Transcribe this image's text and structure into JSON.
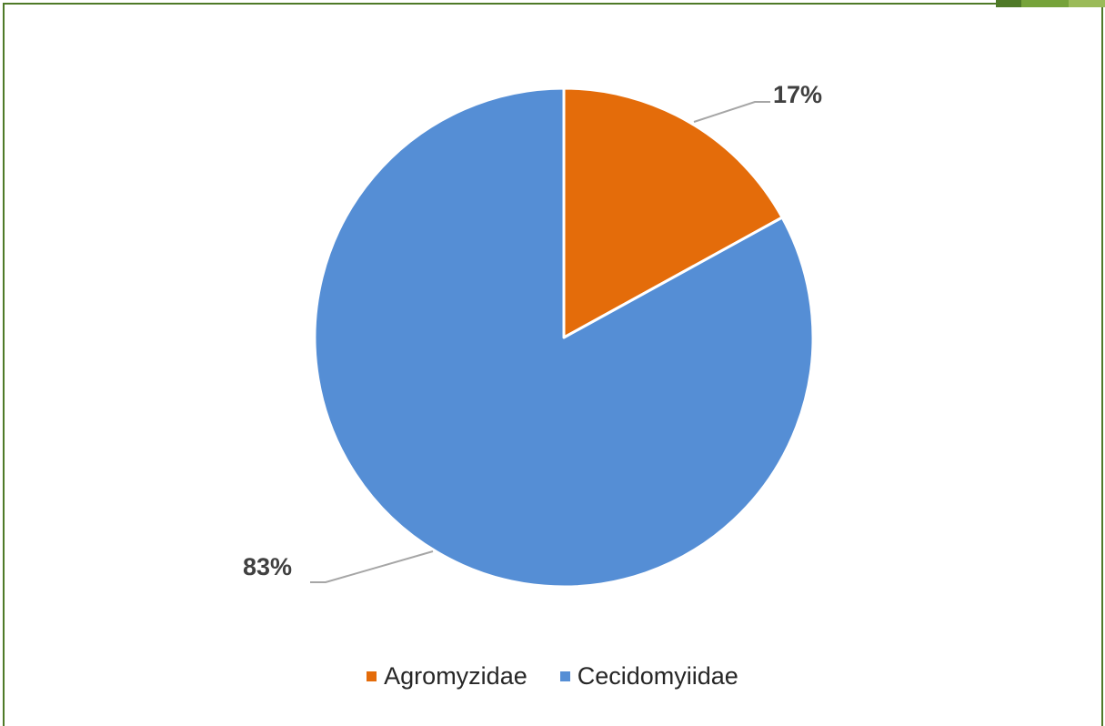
{
  "chart_data": {
    "type": "pie",
    "categories": [
      "Agromyzidae",
      "Cecidomyiidae"
    ],
    "values": [
      17,
      83
    ],
    "labels": [
      "17%",
      "83%"
    ],
    "colors": [
      "#E46C0A",
      "#558ED5"
    ],
    "start_angle_deg": 0,
    "direction": "clockwise",
    "legend_position": "bottom"
  },
  "style": {
    "frame_border": "#4F7A28",
    "accent_colors": [
      "#4F7A28",
      "#76A33A",
      "#9BBB59"
    ],
    "slice_border": "#FFFFFF",
    "leader_line": "#A6A6A6",
    "label_color": "#404040"
  }
}
